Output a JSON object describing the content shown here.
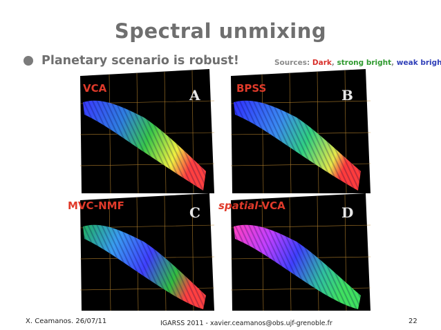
{
  "slide": {
    "title": "Spectral unmixing",
    "bullet": "Planetary scenario is robust!",
    "sources": {
      "prefix": "Sources: ",
      "dark": "Dark",
      "sep1": ", ",
      "strong_bright": "strong bright",
      "sep2": ", ",
      "weak_bright": "weak bright",
      "colors": {
        "prefix": "#8a8a8a",
        "dark": "#d9302b",
        "strong_bright": "#2f9a2f",
        "weak_bright": "#2f3fb8"
      }
    }
  },
  "panels": [
    {
      "label": "VCA",
      "letter": "A"
    },
    {
      "label": "BPSS",
      "letter": "B"
    },
    {
      "label": "MVC-NMF",
      "letter": "C"
    },
    {
      "label_em": "spatial",
      "label_rest": "-VCA",
      "letter": "D"
    }
  ],
  "footer": {
    "left": "X. Ceamanos. 26/07/11",
    "center": "IGARSS 2011 - xavier.ceamanos@obs.ujf-grenoble.fr",
    "page": "22"
  },
  "colors": {
    "title": "#6f6f6f",
    "panel_label": "#e03a2a",
    "map_background": "#000000"
  }
}
